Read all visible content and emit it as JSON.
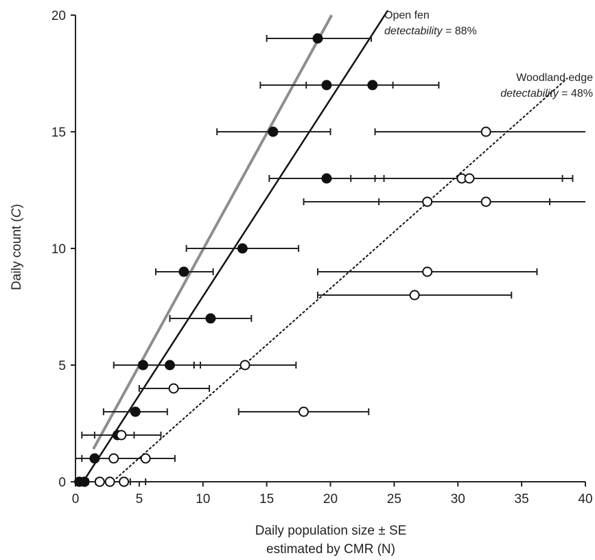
{
  "chart_data": {
    "type": "scatter",
    "xlim": [
      0,
      40
    ],
    "ylim": [
      0,
      20
    ],
    "x_ticks": [
      "0",
      "5",
      "10",
      "15",
      "20",
      "25",
      "30",
      "35",
      "40"
    ],
    "y_ticks": [
      "0",
      "5",
      "10",
      "15",
      "20"
    ],
    "xlabel_line1": "Daily population size ± SE",
    "xlabel_line2": "estimated by CMR (N)",
    "ylabel_prefix": "Daily count (",
    "ylabel_var": "C",
    "ylabel_suffix": ")",
    "grid": false,
    "annotations": [
      {
        "line1": "Open fen",
        "line2_italic": "detectability",
        "line2_rest": " = 88%"
      },
      {
        "line1": "Woodland edge",
        "line2_italic": "detectability",
        "line2_rest": " = 48%"
      }
    ],
    "series": [
      {
        "marker": "filled-circle",
        "points": [
          {
            "x": 19.0,
            "y": 19,
            "xlo": 15.0,
            "xhi": 23.2
          },
          {
            "x": 19.7,
            "y": 17,
            "xlo": 14.5,
            "xhi": 24.9
          },
          {
            "x": 23.3,
            "y": 17,
            "xlo": 18.1,
            "xhi": 28.5
          },
          {
            "x": 15.5,
            "y": 15,
            "xlo": 11.1,
            "xhi": 20.0
          },
          {
            "x": 19.7,
            "y": 13,
            "xlo": 15.2,
            "xhi": 24.2
          },
          {
            "x": 13.1,
            "y": 10,
            "xlo": 8.7,
            "xhi": 17.5
          },
          {
            "x": 8.5,
            "y": 9,
            "xlo": 6.3,
            "xhi": 10.8
          },
          {
            "x": 10.6,
            "y": 7,
            "xlo": 7.4,
            "xhi": 13.8
          },
          {
            "x": 5.3,
            "y": 5,
            "xlo": 3.0,
            "xhi": 9.3
          },
          {
            "x": 7.4,
            "y": 5,
            "xlo": 5.0,
            "xhi": 9.8
          },
          {
            "x": 4.7,
            "y": 3,
            "xlo": 2.2,
            "xhi": 7.2
          },
          {
            "x": 3.3,
            "y": 2,
            "xlo": 0.5,
            "xhi": 6.7
          },
          {
            "x": 1.5,
            "y": 1,
            "xlo": 0.0,
            "xhi": 3.2
          },
          {
            "x": 0.3,
            "y": 0,
            "xlo": 0.0,
            "xhi": 0.8
          },
          {
            "x": 0.7,
            "y": 0,
            "xlo": 0.0,
            "xhi": 1.6
          }
        ]
      },
      {
        "marker": "open-circle",
        "points": [
          {
            "x": 32.2,
            "y": 15,
            "xlo": 23.5,
            "xhi": 40.0
          },
          {
            "x": 30.3,
            "y": 13,
            "xlo": 21.6,
            "xhi": 39.0
          },
          {
            "x": 30.9,
            "y": 13,
            "xlo": 23.5,
            "xhi": 38.2
          },
          {
            "x": 27.6,
            "y": 12,
            "xlo": 17.9,
            "xhi": 37.2
          },
          {
            "x": 32.2,
            "y": 12,
            "xlo": 23.8,
            "xhi": 40.0
          },
          {
            "x": 27.6,
            "y": 9,
            "xlo": 19.0,
            "xhi": 36.2
          },
          {
            "x": 26.6,
            "y": 8,
            "xlo": 19.0,
            "xhi": 34.2
          },
          {
            "x": 13.3,
            "y": 5,
            "xlo": 9.3,
            "xhi": 17.3
          },
          {
            "x": 7.7,
            "y": 4,
            "xlo": 5.0,
            "xhi": 10.5
          },
          {
            "x": 17.9,
            "y": 3,
            "xlo": 12.8,
            "xhi": 23.0
          },
          {
            "x": 3.6,
            "y": 2,
            "xlo": 1.5,
            "xhi": 4.6
          },
          {
            "x": 3.0,
            "y": 1,
            "xlo": 0.5,
            "xhi": 5.5
          },
          {
            "x": 5.5,
            "y": 1,
            "xlo": 2.8,
            "xhi": 7.8
          },
          {
            "x": 1.9,
            "y": 0,
            "xlo": 0.9,
            "xhi": 2.8
          },
          {
            "x": 2.7,
            "y": 0,
            "xlo": 1.0,
            "xhi": 4.3
          },
          {
            "x": 3.8,
            "y": 0,
            "xlo": 2.1,
            "xhi": 5.5
          }
        ]
      }
    ],
    "lines": [
      {
        "style": "solid-gray",
        "color": "#8a8f94",
        "x": [
          1.4,
          20.1
        ],
        "y": [
          1.4,
          20.0
        ]
      },
      {
        "style": "solid-black",
        "color": "#111111",
        "x": [
          0.6,
          24.5
        ],
        "y": [
          0.0,
          20.2
        ]
      },
      {
        "style": "dashed-black",
        "color": "#111111",
        "x": [
          2.9,
          38.6
        ],
        "y": [
          0.0,
          17.3
        ]
      }
    ]
  }
}
